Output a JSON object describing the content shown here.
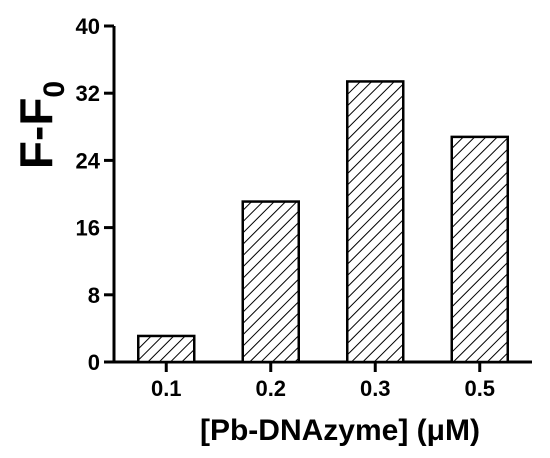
{
  "chart_data": {
    "type": "bar",
    "categories": [
      "0.1",
      "0.2",
      "0.3",
      "0.5"
    ],
    "values": [
      3.1,
      19.1,
      33.4,
      26.8
    ],
    "title": "",
    "xlabel": "[Pb-DNAzyme] (μM)",
    "ylabel": {
      "main": "F-F",
      "subscript": "0"
    },
    "ylim": [
      0,
      40
    ],
    "yticks": [
      "0",
      "8",
      "16",
      "24",
      "32",
      "40"
    ],
    "grid": false,
    "legend": "none",
    "bar_fill": "diagonal-hatch",
    "colors": {
      "bar_stroke": "#000000",
      "bar_hatch": "#000000",
      "background": "#ffffff"
    }
  }
}
